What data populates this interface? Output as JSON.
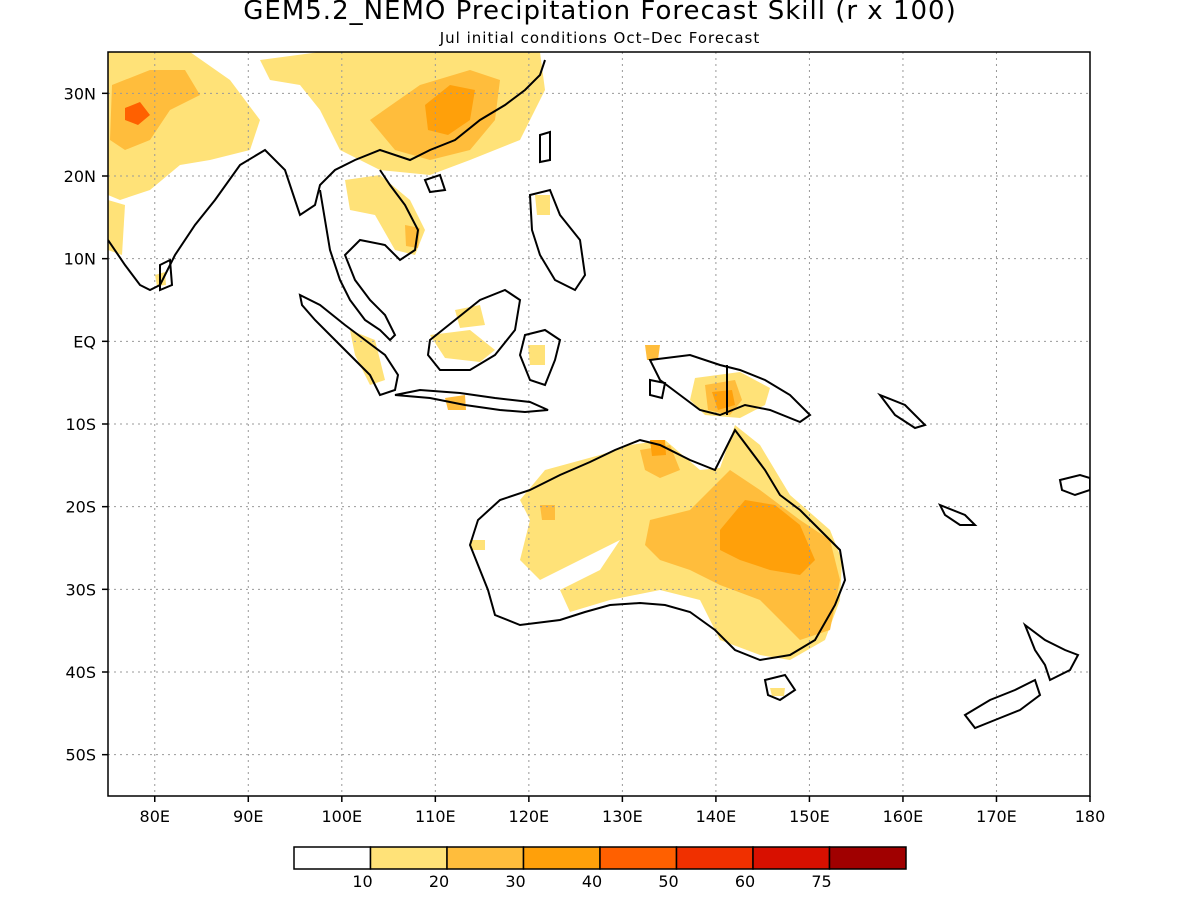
{
  "title": "GEM5.2_NEMO Precipitation Forecast Skill (r x 100)",
  "subtitle": "Jul initial conditions  Oct–Dec Forecast",
  "map": {
    "lon_range": [
      75,
      180
    ],
    "lat_range": [
      -55,
      35
    ],
    "grid": "dotted",
    "lon_ticks": [
      {
        "value": 80,
        "label": "80E"
      },
      {
        "value": 90,
        "label": "90E"
      },
      {
        "value": 100,
        "label": "100E"
      },
      {
        "value": 110,
        "label": "110E"
      },
      {
        "value": 120,
        "label": "120E"
      },
      {
        "value": 130,
        "label": "130E"
      },
      {
        "value": 140,
        "label": "140E"
      },
      {
        "value": 150,
        "label": "150E"
      },
      {
        "value": 160,
        "label": "160E"
      },
      {
        "value": 170,
        "label": "170E"
      },
      {
        "value": 180,
        "label": "180"
      }
    ],
    "lat_ticks": [
      {
        "value": 30,
        "label": "30N"
      },
      {
        "value": 20,
        "label": "20N"
      },
      {
        "value": 10,
        "label": "10N"
      },
      {
        "value": 0,
        "label": "EQ"
      },
      {
        "value": -10,
        "label": "10S"
      },
      {
        "value": -20,
        "label": "20S"
      },
      {
        "value": -30,
        "label": "30S"
      },
      {
        "value": -40,
        "label": "40S"
      },
      {
        "value": -50,
        "label": "50S"
      }
    ]
  },
  "colorbar": {
    "colors": [
      "#ffffff",
      "#ffe278",
      "#ffbd3c",
      "#ffa00a",
      "#ff6000",
      "#f03000",
      "#d81000",
      "#a00000"
    ],
    "labels": [
      "10",
      "20",
      "30",
      "40",
      "50",
      "60",
      "75"
    ]
  }
}
